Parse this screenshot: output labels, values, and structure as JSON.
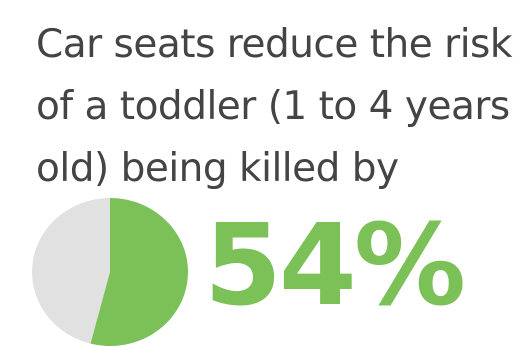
{
  "headline": {
    "lines": [
      "Car seats reduce the risk",
      "of a toddler (1 to 4 years",
      "old) being killed by"
    ]
  },
  "stat": {
    "value_text": "54%",
    "fraction": 0.54
  },
  "colors": {
    "accent": "#7cc157",
    "pie_remainder": "#e1e1e1",
    "text": "#444444"
  }
}
